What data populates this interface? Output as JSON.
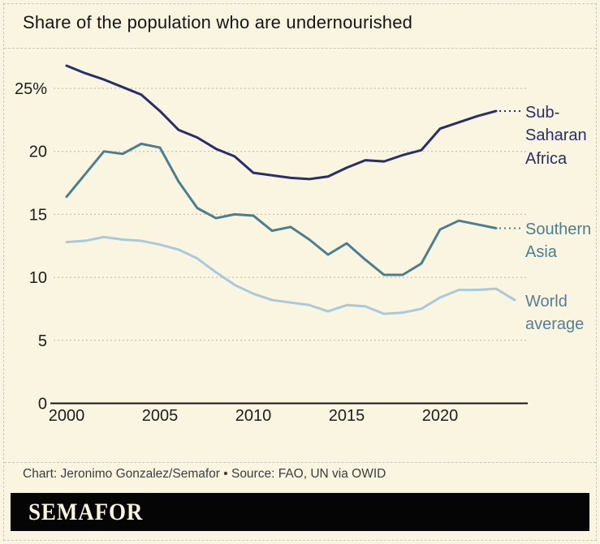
{
  "title": "Share of the population who are undernourished",
  "footer": {
    "credit": "Chart: Jeronimo Gonzalez/Semafor • Source: FAO, UN via OWID"
  },
  "logo": {
    "text": "SEMAFOR"
  },
  "colors": {
    "background": "#f9f5e0",
    "sub_saharan_africa": "#2b2d6b",
    "southern_asia": "#4d7e8f",
    "world_average_line": "#a9cadd",
    "world_average_label": "#567f97",
    "gridline": "#b8b8aa",
    "axis": "#141414",
    "logo_bar": "#050505",
    "logo_text": "#f8f4de"
  },
  "chart_data": {
    "type": "line",
    "title": "Share of the population who are undernourished",
    "xlabel": "",
    "ylabel": "",
    "xlim": [
      2000,
      2024
    ],
    "ylim": [
      0,
      27.5
    ],
    "grid": "horizontal-dashed",
    "legend_position": "right-end-labels",
    "x_ticks": [
      {
        "value": 2000,
        "label": "2000"
      },
      {
        "value": 2005,
        "label": "2005"
      },
      {
        "value": 2010,
        "label": "2010"
      },
      {
        "value": 2015,
        "label": "2015"
      },
      {
        "value": 2020,
        "label": "2020"
      }
    ],
    "y_ticks": [
      {
        "value": 0,
        "label": "0"
      },
      {
        "value": 5,
        "label": "5"
      },
      {
        "value": 10,
        "label": "10"
      },
      {
        "value": 15,
        "label": "15"
      },
      {
        "value": 20,
        "label": "20"
      },
      {
        "value": 25,
        "label": "25%"
      }
    ],
    "series": [
      {
        "id": "sub-saharan-africa",
        "name": "Sub-Saharan Africa",
        "color": "#2b2d6b",
        "label_color": "#2b2d6b",
        "end_connector": true,
        "x": [
          2000,
          2001,
          2002,
          2003,
          2004,
          2005,
          2006,
          2007,
          2008,
          2009,
          2010,
          2011,
          2012,
          2013,
          2014,
          2015,
          2016,
          2017,
          2018,
          2019,
          2020,
          2021,
          2022,
          2023
        ],
        "values": [
          26.8,
          26.2,
          25.7,
          25.1,
          24.5,
          23.2,
          21.7,
          21.1,
          20.2,
          19.6,
          18.3,
          18.1,
          17.9,
          17.8,
          18.0,
          18.7,
          19.3,
          19.2,
          19.7,
          20.1,
          21.8,
          22.3,
          22.8,
          23.2
        ]
      },
      {
        "id": "southern-asia",
        "name": "Southern Asia",
        "color": "#4d7e8f",
        "label_color": "#4d7e8f",
        "end_connector": true,
        "x": [
          2000,
          2001,
          2002,
          2003,
          2004,
          2005,
          2006,
          2007,
          2008,
          2009,
          2010,
          2011,
          2012,
          2013,
          2014,
          2015,
          2016,
          2017,
          2018,
          2019,
          2020,
          2021,
          2022,
          2023
        ],
        "values": [
          16.4,
          18.2,
          20.0,
          19.8,
          20.6,
          20.3,
          17.6,
          15.5,
          14.7,
          15.0,
          14.9,
          13.7,
          14.0,
          13.0,
          11.8,
          12.7,
          11.4,
          10.2,
          10.2,
          11.1,
          13.8,
          14.5,
          14.2,
          13.9
        ]
      },
      {
        "id": "world-average",
        "name": "World average",
        "color": "#a9cadd",
        "label_color": "#567f97",
        "end_connector": false,
        "x": [
          2000,
          2001,
          2002,
          2003,
          2004,
          2005,
          2006,
          2007,
          2008,
          2009,
          2010,
          2011,
          2012,
          2013,
          2014,
          2015,
          2016,
          2017,
          2018,
          2019,
          2020,
          2021,
          2022,
          2023,
          2024
        ],
        "values": [
          12.8,
          12.9,
          13.2,
          13.0,
          12.9,
          12.6,
          12.2,
          11.5,
          10.4,
          9.4,
          8.7,
          8.2,
          8.0,
          7.8,
          7.3,
          7.8,
          7.7,
          7.1,
          7.2,
          7.5,
          8.4,
          9.0,
          9.0,
          9.1,
          8.2
        ]
      }
    ]
  }
}
